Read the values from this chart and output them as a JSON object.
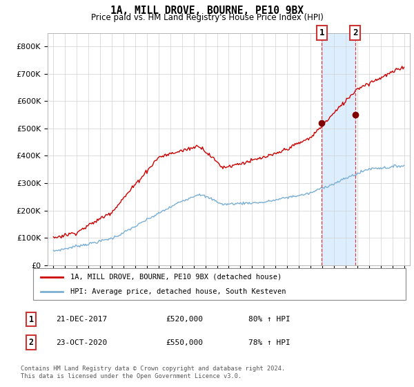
{
  "title": "1A, MILL DROVE, BOURNE, PE10 9BX",
  "subtitle": "Price paid vs. HM Land Registry's House Price Index (HPI)",
  "legend_label_red": "1A, MILL DROVE, BOURNE, PE10 9BX (detached house)",
  "legend_label_blue": "HPI: Average price, detached house, South Kesteven",
  "table_rows": [
    {
      "num": "1",
      "date": "21-DEC-2017",
      "price": "£520,000",
      "hpi": "80% ↑ HPI"
    },
    {
      "num": "2",
      "date": "23-OCT-2020",
      "price": "£550,000",
      "hpi": "78% ↑ HPI"
    }
  ],
  "footnote": "Contains HM Land Registry data © Crown copyright and database right 2024.\nThis data is licensed under the Open Government Licence v3.0.",
  "purchase_1_year": 2017.97,
  "purchase_1_value": 520000,
  "purchase_2_year": 2020.81,
  "purchase_2_value": 550000,
  "highlight_start": 2017.97,
  "highlight_end": 2020.81,
  "red_color": "#cc0000",
  "blue_color": "#7aafd4",
  "highlight_color": "#ddeeff",
  "vline_color": "#cc4444",
  "ylim_min": 0,
  "ylim_max": 850000,
  "xlim_min": 1994.5,
  "xlim_max": 2025.5,
  "yticks": [
    0,
    100000,
    200000,
    300000,
    400000,
    500000,
    600000,
    700000,
    800000
  ],
  "ytick_labels": [
    "£0",
    "£100K",
    "£200K",
    "£300K",
    "£400K",
    "£500K",
    "£600K",
    "£700K",
    "£800K"
  ],
  "xticks": [
    1995,
    1996,
    1997,
    1998,
    1999,
    2000,
    2001,
    2002,
    2003,
    2004,
    2005,
    2006,
    2007,
    2008,
    2009,
    2010,
    2011,
    2012,
    2013,
    2014,
    2015,
    2016,
    2017,
    2018,
    2019,
    2020,
    2021,
    2022,
    2023,
    2024,
    2025
  ],
  "marker_color": "#800000",
  "fig_width": 6.0,
  "fig_height": 5.6,
  "dpi": 100
}
